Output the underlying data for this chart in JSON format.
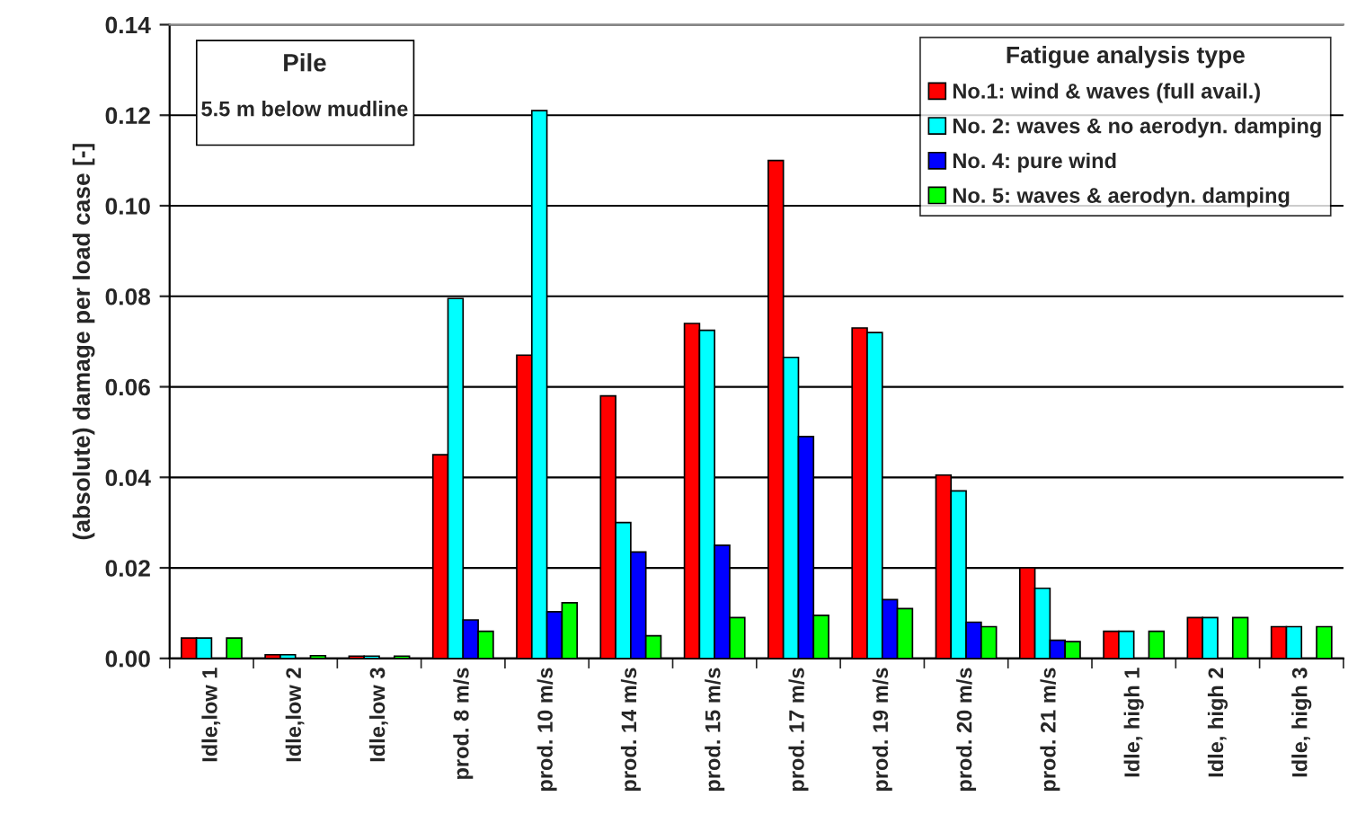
{
  "chart_data": {
    "type": "bar",
    "ylabel": "(absolute) damage per load case [-]",
    "categories": [
      "Idle,low 1",
      "Idle,low 2",
      "Idle,low 3",
      "prod. 8 m/s",
      "prod. 10 m/s",
      "prod. 14 m/s",
      "prod. 15 m/s",
      "prod. 17 m/s",
      "prod. 19 m/s",
      "prod. 20 m/s",
      "prod. 21 m/s",
      "Idle, high 1",
      "Idle, high 2",
      "Idle, high 3"
    ],
    "series": [
      {
        "name": "No.1: wind & waves (full avail.)",
        "color": "#ff0000",
        "values": [
          0.0045,
          0.0008,
          0.0005,
          0.045,
          0.067,
          0.058,
          0.074,
          0.11,
          0.073,
          0.0405,
          0.02,
          0.006,
          0.009,
          0.007
        ]
      },
      {
        "name": "No. 2: waves & no aerodyn. damping",
        "color": "#00ffff",
        "values": [
          0.0045,
          0.0008,
          0.0005,
          0.0795,
          0.121,
          0.03,
          0.0725,
          0.0665,
          0.072,
          0.037,
          0.0155,
          0.006,
          0.009,
          0.007
        ]
      },
      {
        "name": "No. 4: pure wind",
        "color": "#0000ff",
        "values": [
          null,
          null,
          null,
          0.0085,
          0.0103,
          0.0235,
          0.025,
          0.049,
          0.013,
          0.008,
          0.004,
          null,
          null,
          null
        ]
      },
      {
        "name": "No. 5: waves & aerodyn. damping",
        "color": "#00ff00",
        "values": [
          0.0045,
          0.0006,
          0.0005,
          0.006,
          0.0123,
          0.005,
          0.009,
          0.0095,
          0.011,
          0.007,
          0.0037,
          0.006,
          0.009,
          0.007
        ]
      }
    ],
    "legend_title": "Fatigue analysis type",
    "legend": "top right",
    "annotations": [
      "Pile",
      "5.5 m below mudline"
    ],
    "ylim": [
      0,
      0.14
    ],
    "yticks": [
      {
        "value": 0,
        "label": "0.00"
      },
      {
        "value": 0.02,
        "label": "0.02"
      },
      {
        "value": 0.04,
        "label": "0.04"
      },
      {
        "value": 0.06,
        "label": "0.06"
      },
      {
        "value": 0.08,
        "label": "0.08"
      },
      {
        "value": 0.1,
        "label": "0.10"
      },
      {
        "value": 0.12,
        "label": "0.12"
      },
      {
        "value": 0.14,
        "label": "0.14"
      }
    ],
    "grid": "y"
  }
}
